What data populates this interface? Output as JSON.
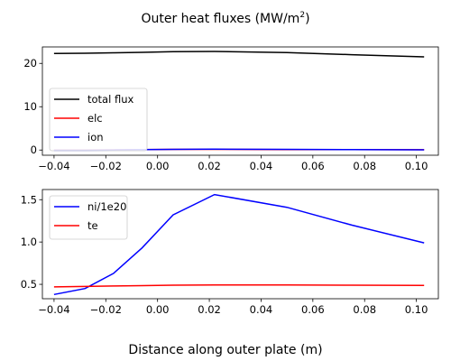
{
  "figure": {
    "title": "Outer heat fluxes (MW/m",
    "title_sup": "2",
    "title_end": ")",
    "xlabel": "Distance along outer plate (m)"
  },
  "chart_data": [
    {
      "type": "line",
      "xlim": [
        -0.0445,
        0.1085
      ],
      "ylim": [
        -1.2,
        23.8
      ],
      "xticks": [
        -0.04,
        -0.02,
        0.0,
        0.02,
        0.04,
        0.06,
        0.08,
        0.1
      ],
      "xticklabels": [
        "−0.04",
        "−0.02",
        "0.00",
        "0.02",
        "0.04",
        "0.06",
        "0.08",
        "0.10"
      ],
      "yticks": [
        0,
        10,
        20
      ],
      "yticklabels": [
        "0",
        "10",
        "20"
      ],
      "grid": false,
      "legend": "center-left",
      "series": [
        {
          "name": "total flux",
          "color": "#000000",
          "x": [
            -0.04,
            -0.028,
            -0.017,
            -0.006,
            0.006,
            0.022,
            0.05,
            0.075,
            0.103
          ],
          "y": [
            22.3,
            22.35,
            22.45,
            22.55,
            22.7,
            22.75,
            22.5,
            22.0,
            21.5
          ]
        },
        {
          "name": "elc",
          "color": "#ff0000",
          "x": [
            -0.04,
            -0.028,
            -0.017,
            -0.006,
            0.006,
            0.022,
            0.05,
            0.075,
            0.103
          ],
          "y": [
            0.0,
            0.0,
            0.05,
            0.1,
            0.15,
            0.15,
            0.12,
            0.1,
            0.08
          ]
        },
        {
          "name": "ion",
          "color": "#0000ff",
          "x": [
            -0.04,
            -0.028,
            -0.017,
            -0.006,
            0.006,
            0.022,
            0.05,
            0.075,
            0.103
          ],
          "y": [
            -0.05,
            -0.05,
            0.0,
            0.1,
            0.15,
            0.2,
            0.15,
            0.1,
            0.05
          ]
        }
      ]
    },
    {
      "type": "line",
      "xlim": [
        -0.0445,
        0.1085
      ],
      "ylim": [
        0.33,
        1.62
      ],
      "xticks": [
        -0.04,
        -0.02,
        0.0,
        0.02,
        0.04,
        0.06,
        0.08,
        0.1
      ],
      "xticklabels": [
        "−0.04",
        "−0.02",
        "0.00",
        "0.02",
        "0.04",
        "0.06",
        "0.08",
        "0.10"
      ],
      "yticks": [
        0.5,
        1.0,
        1.5
      ],
      "yticklabels": [
        "0.5",
        "1.0",
        "1.5"
      ],
      "grid": false,
      "legend": "top-left",
      "series": [
        {
          "name": "ni/1e20",
          "color": "#0000ff",
          "x": [
            -0.04,
            -0.028,
            -0.017,
            -0.006,
            0.006,
            0.022,
            0.05,
            0.075,
            0.103
          ],
          "y": [
            0.38,
            0.45,
            0.63,
            0.93,
            1.32,
            1.56,
            1.41,
            1.2,
            0.99
          ]
        },
        {
          "name": "te",
          "color": "#ff0000",
          "x": [
            -0.04,
            -0.028,
            -0.017,
            -0.006,
            0.006,
            0.022,
            0.05,
            0.075,
            0.103
          ],
          "y": [
            0.47,
            0.475,
            0.48,
            0.485,
            0.49,
            0.493,
            0.492,
            0.49,
            0.487
          ]
        }
      ]
    }
  ]
}
